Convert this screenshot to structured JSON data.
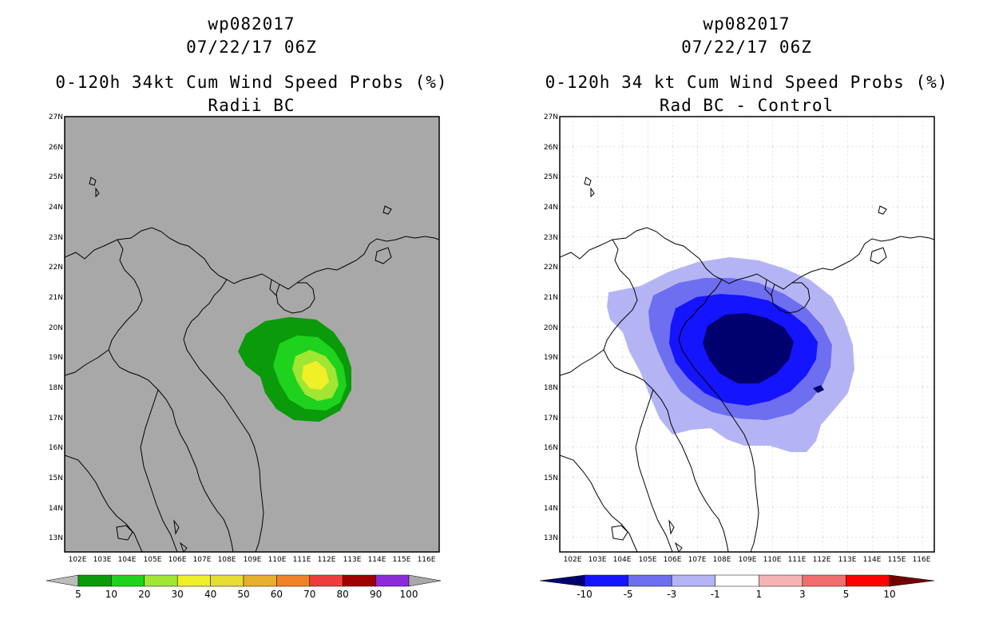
{
  "left": {
    "title1": "wp082017",
    "title2": "07/22/17 06Z",
    "title3": "0-120h 34kt Cum Wind Speed Probs (%)",
    "title4": "Radii BC",
    "colorbar": {
      "labels": [
        "5",
        "10",
        "20",
        "30",
        "40",
        "50",
        "60",
        "70",
        "80",
        "90",
        "100"
      ],
      "colors": [
        "#bcbcbc",
        "#0a9a0a",
        "#1ed21e",
        "#a0e632",
        "#f0f028",
        "#e6dc32",
        "#e6af2d",
        "#f08228",
        "#f03c3c",
        "#a00000",
        "#8c2cd8",
        "#a8a8a8"
      ]
    }
  },
  "right": {
    "title1": "wp082017",
    "title2": "07/22/17 06Z",
    "title3": "0-120h 34 kt Cum Wind Speed Probs (%)",
    "title4": "Rad BC - Control",
    "colorbar": {
      "labels": [
        "-10",
        "-5",
        "-3",
        "-1",
        "1",
        "3",
        "5",
        "10"
      ],
      "colors": [
        "#00006e",
        "#1414ff",
        "#6e6ef0",
        "#b4b4f5",
        "#ffffff",
        "#f5b4b4",
        "#f06e6e",
        "#ff0000",
        "#730000"
      ]
    }
  },
  "map": {
    "lat_labels": [
      "27N",
      "26N",
      "25N",
      "24N",
      "23N",
      "22N",
      "21N",
      "20N",
      "19N",
      "18N",
      "17N",
      "16N",
      "15N",
      "14N",
      "13N"
    ],
    "lon_labels": [
      "102E",
      "103E",
      "104E",
      "105E",
      "106E",
      "107E",
      "108E",
      "109E",
      "110E",
      "111E",
      "112E",
      "113E",
      "114E",
      "115E",
      "116E"
    ]
  }
}
